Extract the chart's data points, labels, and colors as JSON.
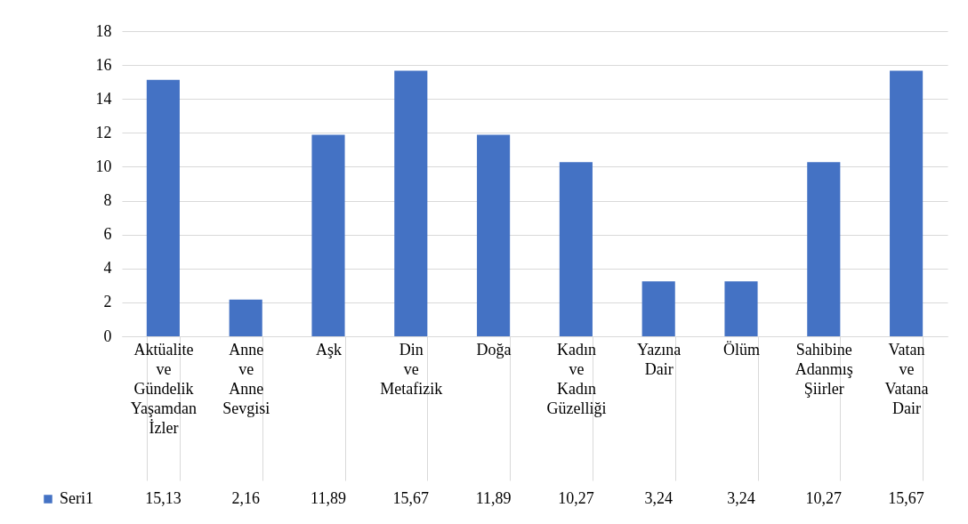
{
  "chart_data": {
    "type": "bar",
    "categories": [
      "Aktüalite ve Gündelik Yaşamdan İzler",
      "Anne ve Anne Sevgisi",
      "Aşk",
      "Din ve Metafizik",
      "Doğa",
      "Kadın ve Kadın Güzelliği",
      "Yazına Dair",
      "Ölüm",
      "Sahibine Adanmış Şiirler",
      "Vatan ve Vatana Dair"
    ],
    "series": [
      {
        "name": "Seri1",
        "color": "#4472c4",
        "values": [
          15.13,
          2.16,
          11.89,
          15.67,
          11.89,
          10.27,
          3.24,
          3.24,
          10.27,
          15.67
        ]
      }
    ],
    "value_labels": [
      "15,13",
      "2,16",
      "11,89",
      "15,67",
      "11,89",
      "10,27",
      "3,24",
      "3,24",
      "10,27",
      "15,67"
    ],
    "ylim": [
      0,
      18
    ],
    "yticks": [
      0,
      2,
      4,
      6,
      8,
      10,
      12,
      14,
      16,
      18
    ],
    "grid": "y",
    "legend": "bottom left"
  }
}
